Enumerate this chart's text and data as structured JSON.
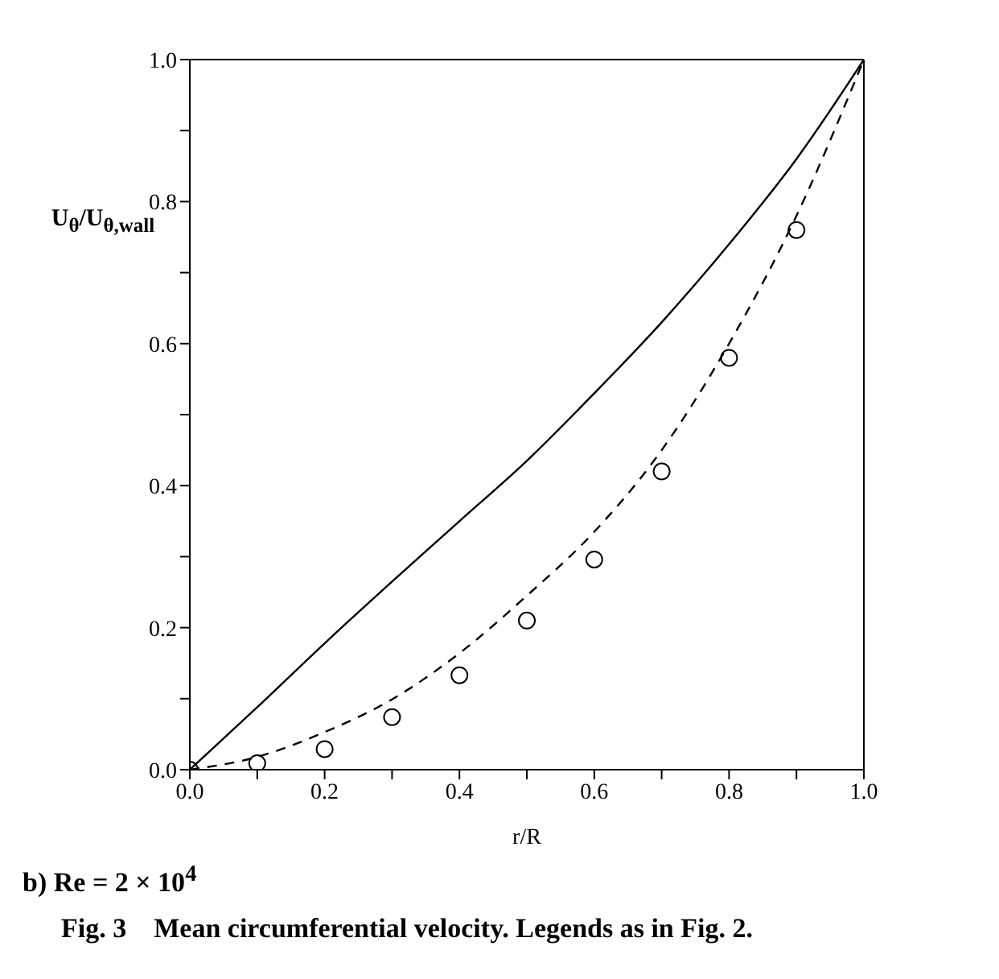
{
  "chart_data": {
    "type": "line",
    "subtitle": "b) Re = 2 × 10$^{4}$",
    "xlabel": "r/R",
    "ylabel": "U$_{θ}$/U$_{θ,wall}$",
    "annotations": [
      "Fig. 3    Mean circumferential velocity. Legends as in Fig. 2."
    ],
    "xlim": [
      0,
      1
    ],
    "ylim": [
      0,
      1
    ],
    "xticks": [
      {
        "value": 0,
        "label": "0.0"
      },
      {
        "value": 0.1,
        "label": null
      },
      {
        "value": 0.2,
        "label": "0.2"
      },
      {
        "value": 0.3,
        "label": null
      },
      {
        "value": 0.4,
        "label": "0.4"
      },
      {
        "value": 0.5,
        "label": null
      },
      {
        "value": 0.6,
        "label": "0.6"
      },
      {
        "value": 0.7,
        "label": null
      },
      {
        "value": 0.8,
        "label": "0.8"
      },
      {
        "value": 0.9,
        "label": null
      },
      {
        "value": 1,
        "label": "1.0"
      }
    ],
    "yticks": [
      {
        "value": 0,
        "label": "0.0"
      },
      {
        "value": 0.1,
        "label": null
      },
      {
        "value": 0.2,
        "label": "0.2"
      },
      {
        "value": 0.3,
        "label": null
      },
      {
        "value": 0.4,
        "label": "0.4"
      },
      {
        "value": 0.5,
        "label": null
      },
      {
        "value": 0.6,
        "label": "0.6"
      },
      {
        "value": 0.7,
        "label": null
      },
      {
        "value": 0.8,
        "label": "0.8"
      },
      {
        "value": 0.9,
        "label": null
      },
      {
        "value": 1,
        "label": "1.0"
      }
    ],
    "grid": false,
    "series": [
      {
        "line_style": "solid",
        "color": "#000000",
        "x": [
          0,
          0.1,
          0.2,
          0.3,
          0.4,
          0.5,
          0.6,
          0.7,
          0.8,
          0.9,
          1
        ],
        "values": [
          0,
          0.088,
          0.178,
          0.265,
          0.35,
          0.435,
          0.53,
          0.63,
          0.74,
          0.86,
          1
        ]
      },
      {
        "line_style": "dashed",
        "color": "#000000",
        "x": [
          0,
          0.1,
          0.2,
          0.3,
          0.4,
          0.5,
          0.6,
          0.7,
          0.8,
          0.9,
          1
        ],
        "values": [
          0,
          0.018,
          0.053,
          0.099,
          0.164,
          0.245,
          0.335,
          0.45,
          0.6,
          0.78,
          1
        ]
      },
      {
        "type": "scatter",
        "marker": "circle",
        "color": "#000000",
        "x": [
          0,
          0.1,
          0.2,
          0.3,
          0.4,
          0.5,
          0.6,
          0.7,
          0.8,
          0.9
        ],
        "values": [
          0,
          0.009,
          0.029,
          0.074,
          0.133,
          0.21,
          0.296,
          0.42,
          0.58,
          0.76
        ]
      }
    ]
  }
}
